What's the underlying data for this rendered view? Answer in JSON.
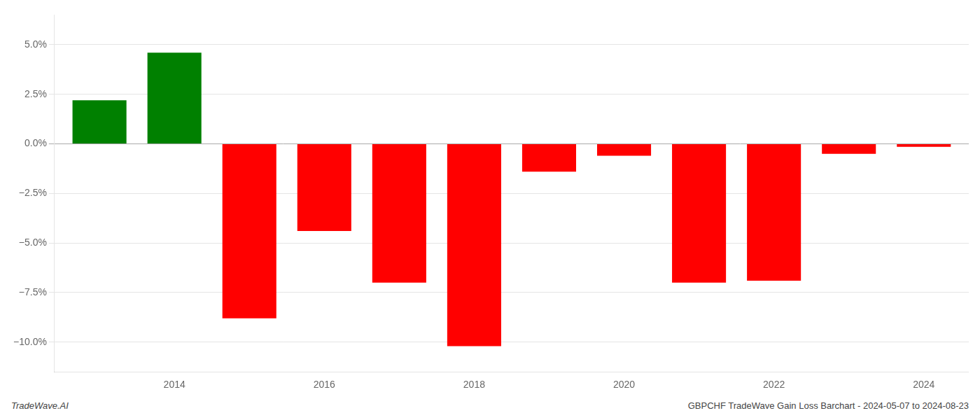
{
  "chart_data": {
    "type": "bar",
    "x": [
      2013,
      2014,
      2015,
      2016,
      2017,
      2018,
      2019,
      2020,
      2021,
      2022,
      2023,
      2024
    ],
    "values": [
      2.2,
      4.6,
      -8.8,
      -4.4,
      -7.0,
      -10.2,
      -1.4,
      -0.6,
      -7.0,
      -6.9,
      -0.5,
      -0.15
    ],
    "colors": [
      "#008000",
      "#008000",
      "#ff0000",
      "#ff0000",
      "#ff0000",
      "#ff0000",
      "#ff0000",
      "#ff0000",
      "#ff0000",
      "#ff0000",
      "#ff0000",
      "#ff0000"
    ],
    "xlim": [
      2012.4,
      2024.6
    ],
    "xticks": [
      2014,
      2016,
      2018,
      2020,
      2022,
      2024
    ],
    "ylim": [
      -11.5,
      6.5
    ],
    "yticks": [
      {
        "value": -10.0,
        "label": "−10.0%"
      },
      {
        "value": -7.5,
        "label": "−7.5%"
      },
      {
        "value": -5.0,
        "label": "−5.0%"
      },
      {
        "value": -2.5,
        "label": "−2.5%"
      },
      {
        "value": 0.0,
        "label": "0.0%"
      },
      {
        "value": 2.5,
        "label": "2.5%"
      },
      {
        "value": 5.0,
        "label": "5.0%"
      }
    ],
    "grid": "y",
    "annotations": [
      "TradeWave.AI",
      "GBPCHF TradeWave Gain Loss Barchart - 2024-05-07 to 2024-08-23"
    ]
  }
}
